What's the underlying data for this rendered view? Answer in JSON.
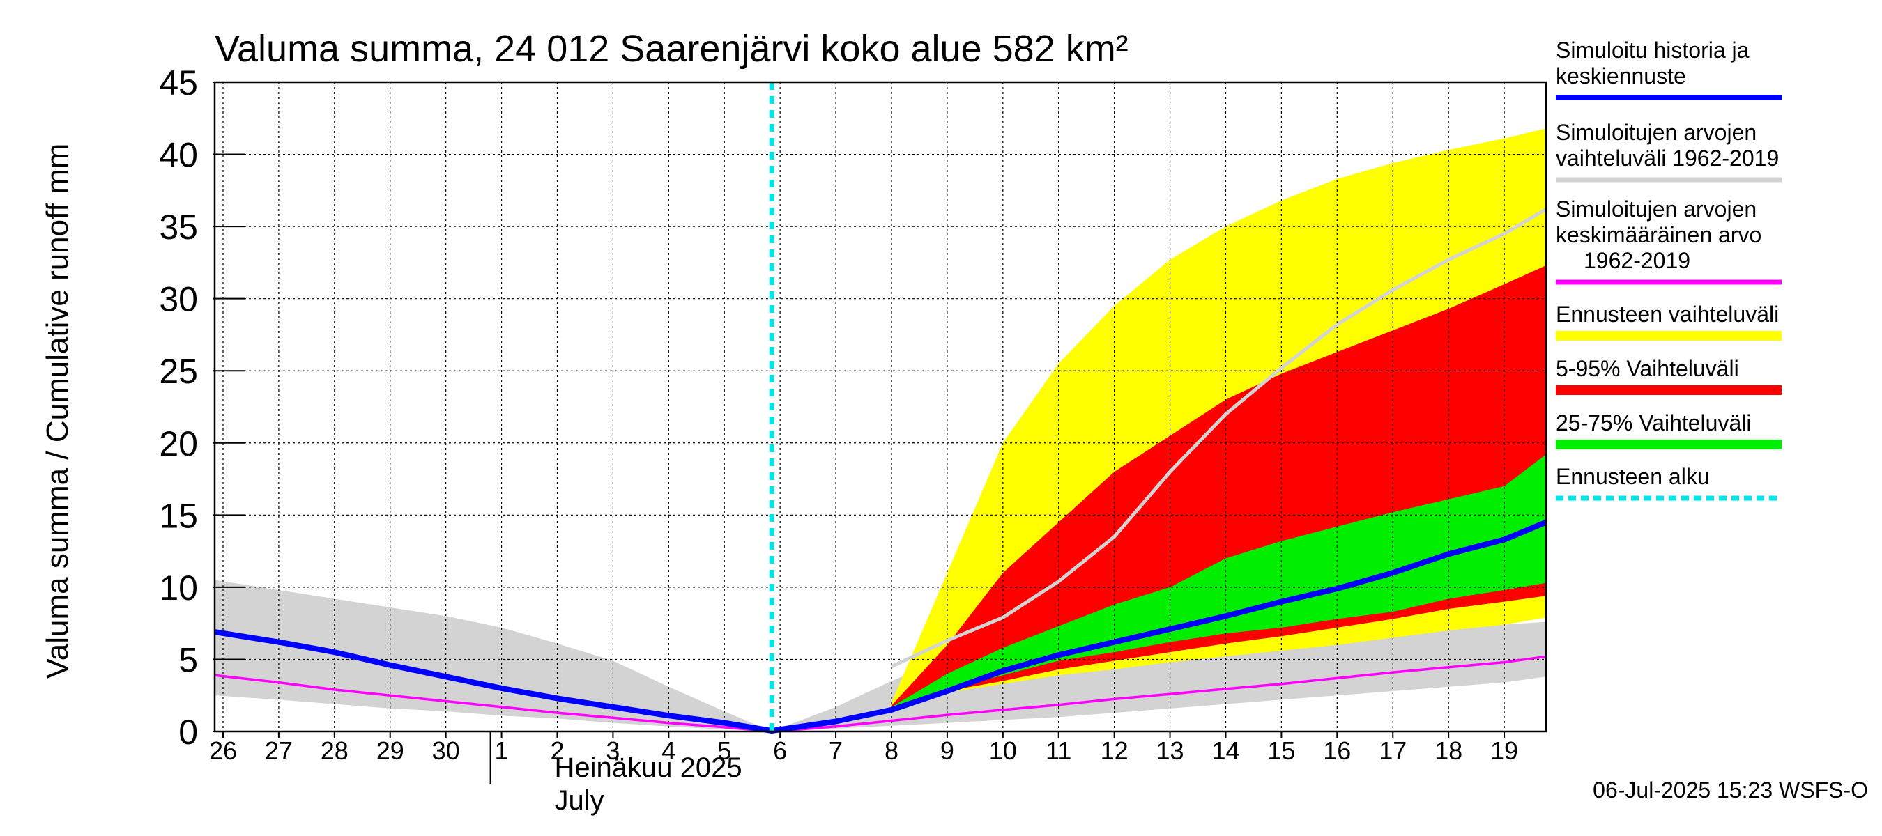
{
  "chart_data": {
    "type": "area",
    "title": "Valuma summa, 24 012 Saarenjärvi koko alue 582 km²",
    "ylabel": "Valuma summa / Cumulative runoff    mm",
    "ylim": [
      0,
      45
    ],
    "yticks": [
      0,
      5,
      10,
      15,
      20,
      25,
      30,
      35,
      40,
      45
    ],
    "xlim": [
      -0.15,
      23.75
    ],
    "xticks": [
      {
        "label": "26",
        "x": 0
      },
      {
        "label": "27",
        "x": 1
      },
      {
        "label": "28",
        "x": 2
      },
      {
        "label": "29",
        "x": 3
      },
      {
        "label": "30",
        "x": 4
      },
      {
        "label": "1",
        "x": 5
      },
      {
        "label": "2",
        "x": 6
      },
      {
        "label": "3",
        "x": 7
      },
      {
        "label": "4",
        "x": 8
      },
      {
        "label": "5",
        "x": 9
      },
      {
        "label": "6",
        "x": 10
      },
      {
        "label": "7",
        "x": 11
      },
      {
        "label": "8",
        "x": 12
      },
      {
        "label": "9",
        "x": 13
      },
      {
        "label": "10",
        "x": 14
      },
      {
        "label": "11",
        "x": 15
      },
      {
        "label": "12",
        "x": 16
      },
      {
        "label": "13",
        "x": 17
      },
      {
        "label": "14",
        "x": 18
      },
      {
        "label": "15",
        "x": 19
      },
      {
        "label": "16",
        "x": 20
      },
      {
        "label": "17",
        "x": 21
      },
      {
        "label": "18",
        "x": 22
      },
      {
        "label": "19",
        "x": 23
      }
    ],
    "month_labels": [
      "Heinäkuu  2025",
      "July"
    ],
    "forecast_start_x": 9.85,
    "grid": true,
    "legend_position": "right",
    "series": [
      {
        "name": "Ennusteen vaihteluväli",
        "color": "#ffff00",
        "x": [
          12,
          13,
          14,
          15,
          16,
          17,
          18,
          19,
          20,
          21,
          22,
          23,
          23.75
        ],
        "upper": [
          2.0,
          11.0,
          20.0,
          25.5,
          29.5,
          32.7,
          35.0,
          36.8,
          38.3,
          39.4,
          40.3,
          41.1,
          41.8
        ],
        "lower": [
          1.5,
          2.7,
          3.3,
          3.9,
          4.3,
          4.8,
          5.2,
          5.6,
          6.0,
          6.5,
          7.0,
          7.4,
          7.9
        ]
      },
      {
        "name": "5-95% Vaihteluväli",
        "color": "#ff0000",
        "x": [
          12,
          13,
          14,
          15,
          16,
          17,
          18,
          19,
          20,
          21,
          22,
          23,
          23.75
        ],
        "upper": [
          1.8,
          6.0,
          11.0,
          14.5,
          18.0,
          20.5,
          23.0,
          24.8,
          26.3,
          27.8,
          29.3,
          31.0,
          32.3
        ],
        "lower": [
          1.5,
          2.8,
          3.5,
          4.3,
          4.9,
          5.5,
          6.1,
          6.6,
          7.2,
          7.8,
          8.5,
          9.0,
          9.4
        ]
      },
      {
        "name": "25-75% Vaihteluväli",
        "color": "#00ee00",
        "x": [
          12,
          13,
          14,
          15,
          16,
          17,
          18,
          19,
          20,
          21,
          22,
          23,
          23.75
        ],
        "upper": [
          1.7,
          4.0,
          5.8,
          7.3,
          8.8,
          10.0,
          12.0,
          13.2,
          14.2,
          15.2,
          16.1,
          17.0,
          19.2
        ],
        "lower": [
          1.5,
          2.9,
          3.9,
          4.9,
          5.5,
          6.2,
          6.8,
          7.2,
          7.8,
          8.3,
          9.2,
          9.8,
          10.3
        ]
      },
      {
        "name": "Simuloitujen arvojen vaihteluväli 1962-2019",
        "color": "#d3d3d3",
        "x": [
          -0.15,
          1,
          2,
          3,
          4,
          5,
          6,
          7,
          8,
          9,
          9.85,
          11,
          12,
          13,
          14,
          15,
          16,
          17,
          18,
          19,
          20,
          21,
          22,
          23,
          23.75
        ],
        "upper": [
          10.5,
          9.8,
          9.2,
          8.6,
          8.0,
          7.2,
          6.1,
          4.9,
          3.1,
          1.4,
          0.0,
          1.7,
          3.5,
          5.1,
          5.8,
          6.2,
          6.5,
          6.7,
          6.9,
          7.0,
          7.1,
          7.2,
          7.3,
          7.4,
          7.6
        ],
        "lower": [
          2.5,
          2.2,
          1.9,
          1.6,
          1.4,
          1.1,
          0.9,
          0.6,
          0.35,
          0.15,
          0.0,
          0.2,
          0.4,
          0.6,
          0.8,
          1.0,
          1.3,
          1.6,
          1.9,
          2.2,
          2.5,
          2.8,
          3.1,
          3.4,
          3.8
        ]
      },
      {
        "name": "Simuloitujen arvojen keskimääräinen arvo 1962-2019",
        "color": "#d3d3d3",
        "x": [
          12,
          13,
          14,
          15,
          16,
          17,
          18,
          19,
          20,
          21,
          22,
          23,
          23.75
        ],
        "values": [
          4.5,
          6.3,
          7.9,
          10.4,
          13.5,
          18.0,
          22.0,
          25.2,
          28.2,
          30.6,
          32.7,
          34.5,
          36.2
        ]
      },
      {
        "name": "Simuloitujen arvojen keskimääräinen arvo 1962-2019",
        "color": "#ff00ff",
        "x": [
          -0.15,
          1,
          2,
          3,
          4,
          5,
          6,
          7,
          8,
          9,
          9.85,
          11,
          12,
          13,
          14,
          15,
          16,
          17,
          18,
          19,
          20,
          21,
          22,
          23,
          23.75
        ],
        "values": [
          3.9,
          3.4,
          2.9,
          2.5,
          2.1,
          1.7,
          1.3,
          0.95,
          0.6,
          0.3,
          0.0,
          0.35,
          0.75,
          1.15,
          1.5,
          1.85,
          2.25,
          2.6,
          2.95,
          3.3,
          3.7,
          4.1,
          4.45,
          4.8,
          5.2
        ]
      },
      {
        "name": "Simuloitu historia ja keskiennuste",
        "color": "#0000ff",
        "x": [
          -0.15,
          1,
          2,
          3,
          4,
          5,
          6,
          7,
          8,
          9,
          9.85,
          11,
          12,
          13,
          14,
          15,
          16,
          17,
          18,
          19,
          20,
          21,
          22,
          23,
          23.75
        ],
        "values": [
          6.9,
          6.2,
          5.5,
          4.6,
          3.8,
          3.0,
          2.3,
          1.7,
          1.1,
          0.6,
          0.05,
          0.7,
          1.5,
          2.8,
          4.2,
          5.3,
          6.2,
          7.1,
          8.0,
          9.0,
          9.9,
          11.0,
          12.3,
          13.3,
          14.5
        ]
      }
    ],
    "legend": [
      {
        "lines": [
          "Simuloitu historia ja",
          "keskiennuste"
        ],
        "color": "#0000ff",
        "style": "solid"
      },
      {
        "lines": [
          "Simuloitujen arvojen",
          "vaihteluväli 1962-2019"
        ],
        "color": "#d3d3d3",
        "style": "solid"
      },
      {
        "lines": [
          "Simuloitujen arvojen",
          "keskimääräinen arvo",
          "1962-2019"
        ],
        "color": "#ff00ff",
        "style": "solid"
      },
      {
        "lines": [
          "Ennusteen vaihteluväli"
        ],
        "color": "#ffff00",
        "style": "solid"
      },
      {
        "lines": [
          "5-95% Vaihteluväli"
        ],
        "color": "#ff0000",
        "style": "solid"
      },
      {
        "lines": [
          "25-75% Vaihteluväli"
        ],
        "color": "#00ee00",
        "style": "solid"
      },
      {
        "lines": [
          "Ennusteen alku"
        ],
        "color": "#00e5e5",
        "style": "dashed"
      }
    ],
    "footer": "06-Jul-2025 15:23 WSFS-O"
  }
}
